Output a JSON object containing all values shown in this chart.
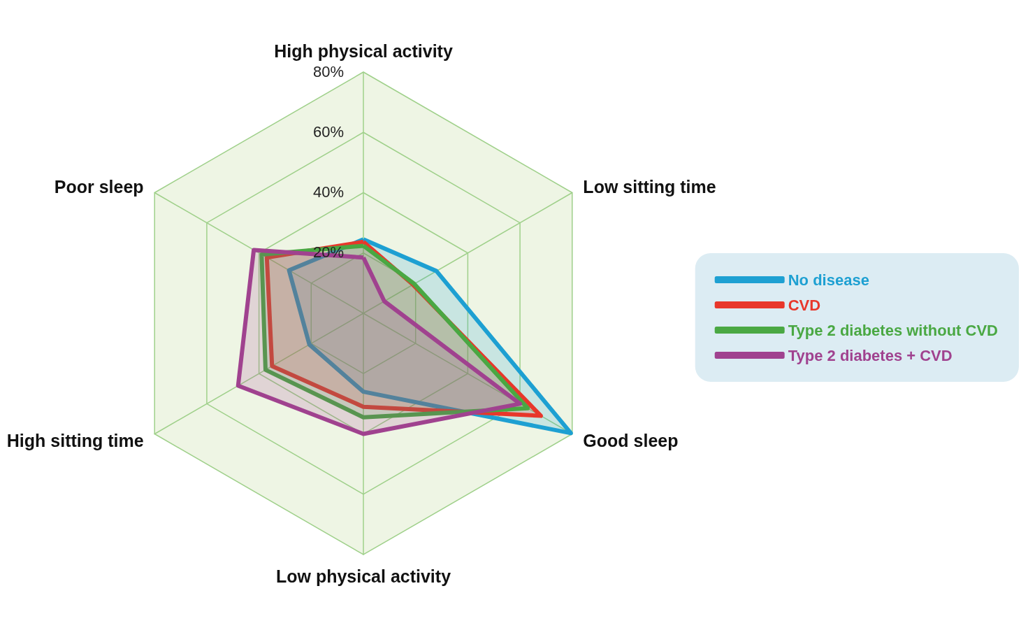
{
  "chart_data": {
    "type": "radar",
    "categories": [
      "High physical activity",
      "Low sitting time",
      "Good sleep",
      "Low physical activity",
      "High sitting time",
      "Poor sleep"
    ],
    "ylim": [
      0,
      80
    ],
    "yticks": [
      {
        "value": 20,
        "label": "20%"
      },
      {
        "value": 40,
        "label": "40%"
      },
      {
        "value": 60,
        "label": "60%"
      },
      {
        "value": 80,
        "label": "80%"
      }
    ],
    "series": [
      {
        "name": "No disease",
        "color": "#1ea0d2",
        "values": [
          24.5,
          28,
          79.5,
          26,
          20.7,
          28.5
        ]
      },
      {
        "name": "CVD",
        "color": "#e8372b",
        "values": [
          23.7,
          19,
          68,
          31,
          35,
          37
        ]
      },
      {
        "name": "Type 2 diabetes without CVD",
        "color": "#4aa843",
        "values": [
          22.4,
          19.5,
          63,
          34.5,
          37.5,
          39
        ]
      },
      {
        "name": "Type 2 diabetes + CVD",
        "color": "#a0428f",
        "values": [
          18.5,
          8,
          60,
          40,
          48,
          42
        ]
      }
    ],
    "legend": "right",
    "marker": "none",
    "line_style": "solid"
  }
}
